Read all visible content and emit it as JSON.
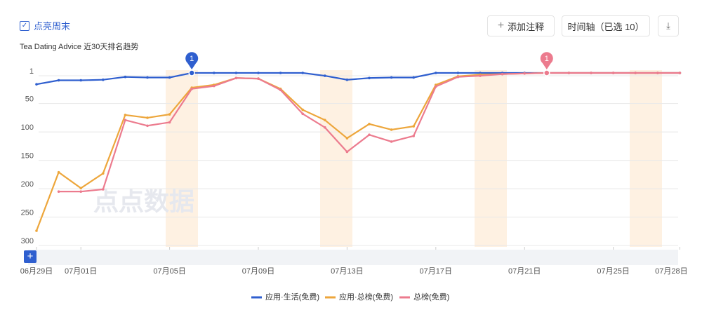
{
  "toolbar": {
    "weekend_toggle": "点亮周末",
    "add_note": "添加注释",
    "timeline": "时间轴（已选 10）"
  },
  "watermark": "点点数据",
  "chart_data": {
    "type": "line",
    "subtitle": "Tea Dating Advice 近30天排名趋势",
    "categories": [
      "06月29日",
      null,
      "07月01日",
      null,
      null,
      null,
      "07月05日",
      null,
      null,
      null,
      "07月09日",
      null,
      null,
      null,
      "07月13日",
      null,
      null,
      null,
      "07月17日",
      null,
      null,
      null,
      "07月21日",
      null,
      null,
      null,
      "07月25日",
      null,
      null,
      "07月28日"
    ],
    "series": [
      {
        "name": "应用·生活(免费)",
        "color": "#2f5fcf",
        "values": [
          21,
          14,
          14,
          13,
          8,
          9,
          9,
          1,
          1,
          1,
          1,
          1,
          1,
          6,
          13,
          10,
          9,
          9,
          1,
          1,
          1,
          1,
          1,
          1,
          1,
          1,
          1,
          1,
          1,
          1
        ]
      },
      {
        "name": "应用·总榜(免费)",
        "color": "#eda63b",
        "values": [
          279,
          176,
          204,
          178,
          75,
          80,
          74,
          27,
          22,
          10,
          11,
          29,
          66,
          84,
          116,
          91,
          101,
          95,
          22,
          7,
          4,
          3,
          2,
          1,
          1,
          1,
          1,
          1,
          1,
          1
        ]
      },
      {
        "name": "总榜(免费)",
        "color": "#ec7b8e",
        "values": [
          null,
          210,
          210,
          206,
          84,
          94,
          88,
          29,
          24,
          10,
          11,
          31,
          73,
          97,
          140,
          110,
          122,
          112,
          25,
          8,
          6,
          3,
          2,
          1,
          1,
          1,
          1,
          1,
          1,
          1
        ]
      }
    ],
    "annotations": [
      {
        "text": "1",
        "series": 0,
        "index": 7
      },
      {
        "text": "1",
        "series": 2,
        "index": 23
      }
    ],
    "ylim": [
      1,
      300
    ],
    "y_inverted": true,
    "yticks": [
      1,
      50,
      100,
      150,
      200,
      250,
      300
    ],
    "grid": true
  }
}
